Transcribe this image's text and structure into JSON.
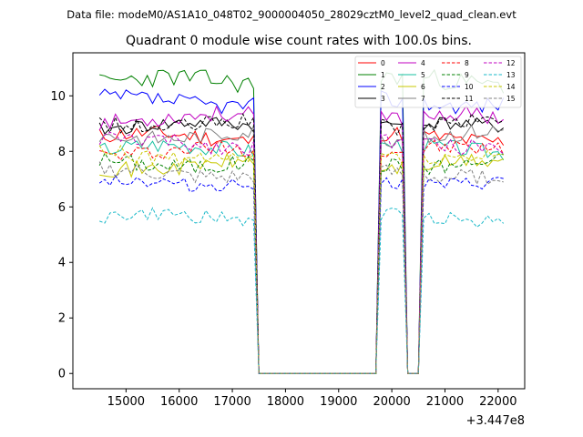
{
  "figure": {
    "suptitle": "Data file: modeM0/AS1A10_048T02_9000004050_28029cztM0_level2_quad_clean.evt",
    "title": "Quadrant 0 module wise count rates with 100.0s bins.",
    "x_offset_label": "+3.447e8"
  },
  "chart_data": {
    "type": "line",
    "title": "Quadrant 0 module wise count rates with 100.0s bins.",
    "xlabel": "",
    "ylabel": "",
    "x_offset": 344700000,
    "xlim": [
      14000,
      22500
    ],
    "ylim": [
      -0.55,
      11.55
    ],
    "x_ticks": [
      15000,
      16000,
      17000,
      18000,
      19000,
      20000,
      21000,
      22000
    ],
    "y_ticks": [
      0,
      2,
      4,
      6,
      8,
      10
    ],
    "grid": false,
    "legend_placement": "top-right",
    "x_segments": [
      {
        "start": 14500,
        "end": 17400,
        "state": "on"
      },
      {
        "start": 17600,
        "end": 19600,
        "state": "off"
      },
      {
        "start": 19800,
        "end": 20200,
        "state": "on"
      },
      {
        "start": 20300,
        "end": 20500,
        "state": "off"
      },
      {
        "start": 20600,
        "end": 22100,
        "state": "on"
      }
    ],
    "series": [
      {
        "name": "0",
        "color": "#ff0000",
        "dash": "solid",
        "level": 8.5,
        "amp": 0.3,
        "seed": 11
      },
      {
        "name": "1",
        "color": "#008000",
        "dash": "solid",
        "level": 10.5,
        "amp": 0.35,
        "seed": 23
      },
      {
        "name": "2",
        "color": "#0000ff",
        "dash": "solid",
        "level": 9.8,
        "amp": 0.3,
        "seed": 37
      },
      {
        "name": "3",
        "color": "#000000",
        "dash": "solid",
        "level": 8.9,
        "amp": 0.25,
        "seed": 41
      },
      {
        "name": "4",
        "color": "#c000c0",
        "dash": "solid",
        "level": 9.2,
        "amp": 0.3,
        "seed": 53
      },
      {
        "name": "5",
        "color": "#17c0a0",
        "dash": "solid",
        "level": 8.1,
        "amp": 0.3,
        "seed": 67
      },
      {
        "name": "6",
        "color": "#c8c800",
        "dash": "solid",
        "level": 7.5,
        "amp": 0.3,
        "seed": 71
      },
      {
        "name": "7",
        "color": "#808080",
        "dash": "solid",
        "level": 8.6,
        "amp": 0.3,
        "seed": 83
      },
      {
        "name": "8",
        "color": "#ff0000",
        "dash": "dashed",
        "level": 8.0,
        "amp": 0.3,
        "seed": 97
      },
      {
        "name": "9",
        "color": "#008000",
        "dash": "dashed",
        "level": 7.6,
        "amp": 0.3,
        "seed": 101
      },
      {
        "name": "10",
        "color": "#0000ff",
        "dash": "dashed",
        "level": 6.9,
        "amp": 0.25,
        "seed": 113
      },
      {
        "name": "11",
        "color": "#000000",
        "dash": "dashed",
        "level": 9.0,
        "amp": 0.3,
        "seed": 127
      },
      {
        "name": "12",
        "color": "#c000c0",
        "dash": "dashed",
        "level": 8.3,
        "amp": 0.3,
        "seed": 131
      },
      {
        "name": "13",
        "color": "#17b8c8",
        "dash": "dashed",
        "level": 5.6,
        "amp": 0.25,
        "seed": 149
      },
      {
        "name": "14",
        "color": "#c8c800",
        "dash": "dashed",
        "level": 7.8,
        "amp": 0.3,
        "seed": 157
      },
      {
        "name": "15",
        "color": "#808080",
        "dash": "dashed",
        "level": 7.2,
        "amp": 0.3,
        "seed": 163
      }
    ]
  }
}
